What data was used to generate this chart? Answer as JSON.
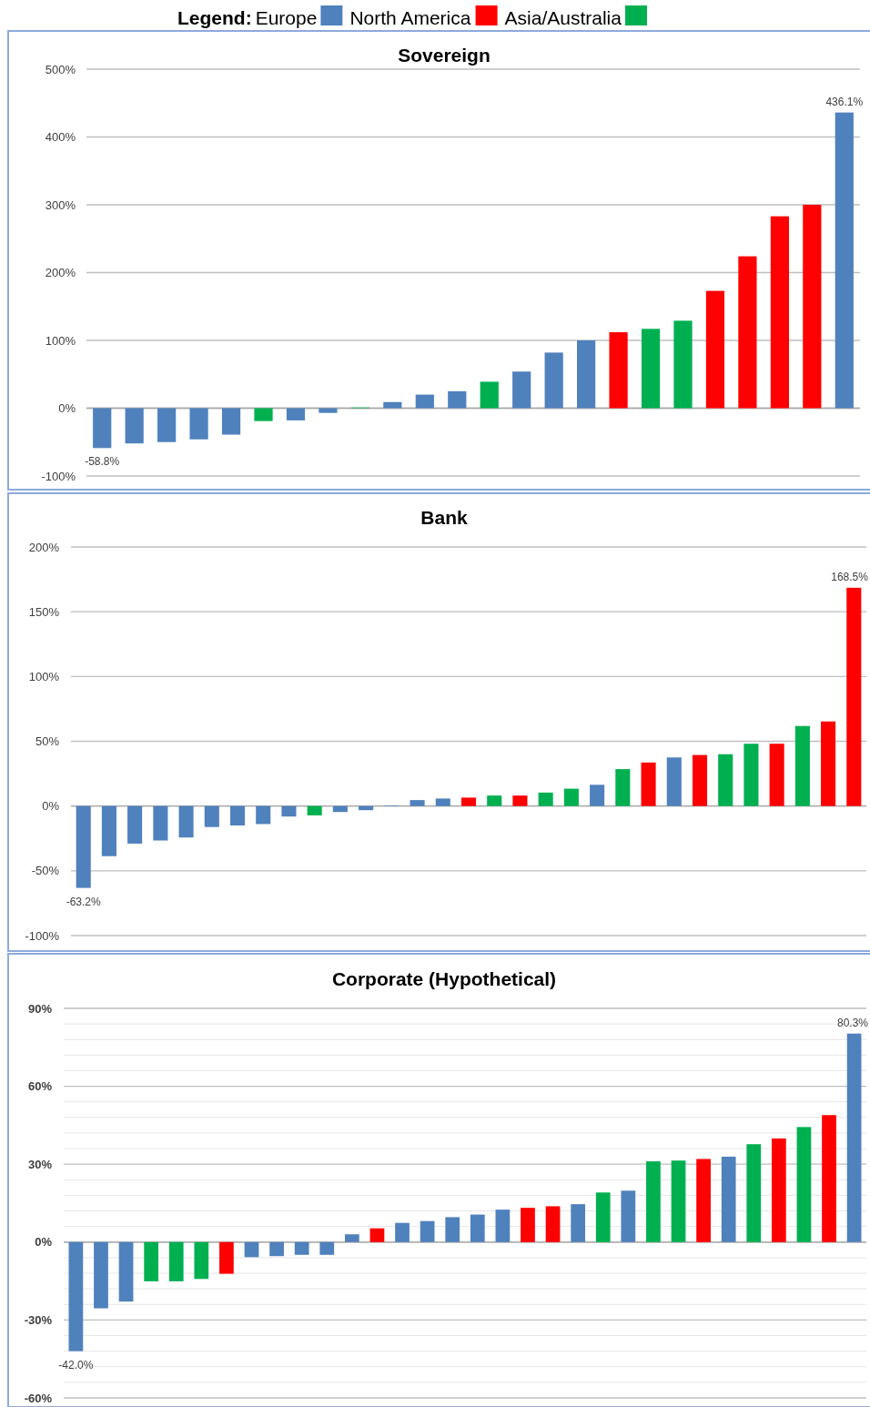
{
  "chart_data": [
    {
      "type": "bar",
      "title": "Sovereign",
      "grid": true,
      "legend": "top",
      "legend_title": "Legend:",
      "categories": [
        null,
        null,
        null,
        null,
        null,
        null,
        null,
        null,
        null,
        null,
        null,
        null,
        null,
        null,
        null,
        null,
        null,
        null,
        null,
        null,
        null,
        null,
        null,
        null
      ],
      "ylim": [
        -100,
        500
      ],
      "yticks": [
        {
          "value": -100,
          "label": "-100%"
        },
        {
          "value": 0,
          "label": "0%"
        },
        {
          "value": 100,
          "label": "100%"
        },
        {
          "value": 200,
          "label": "200%"
        },
        {
          "value": 300,
          "label": "300%"
        },
        {
          "value": 400,
          "label": "400%"
        },
        {
          "value": 500,
          "label": "500%"
        }
      ],
      "series": [
        {
          "name": "Europe",
          "color": "#4f81bd",
          "values": [
            -58.8,
            -52,
            -50,
            -46,
            -39,
            null,
            -18,
            -7,
            null,
            9,
            20,
            25,
            null,
            54,
            82,
            100,
            null,
            null,
            null,
            null,
            null,
            null,
            null,
            436.1
          ],
          "value_labels": [
            "-58.8%",
            null,
            null,
            null,
            null,
            null,
            null,
            null,
            null,
            null,
            null,
            null,
            null,
            null,
            null,
            null,
            null,
            null,
            null,
            null,
            null,
            null,
            null,
            "436.1%"
          ]
        },
        {
          "name": "North America",
          "color": "#ff0000",
          "values": [
            null,
            null,
            null,
            null,
            null,
            null,
            null,
            null,
            null,
            null,
            null,
            null,
            null,
            null,
            null,
            null,
            112,
            null,
            null,
            173,
            224,
            283,
            300,
            null
          ]
        },
        {
          "name": "Asia/Australia",
          "color": "#00b050",
          "values": [
            null,
            null,
            null,
            null,
            null,
            -19,
            null,
            null,
            1,
            null,
            null,
            null,
            39,
            null,
            null,
            null,
            null,
            117,
            129,
            null,
            null,
            null,
            null,
            null
          ]
        }
      ]
    },
    {
      "type": "bar",
      "title": "Bank",
      "grid": true,
      "categories": [
        null,
        null,
        null,
        null,
        null,
        null,
        null,
        null,
        null,
        null,
        null,
        null,
        null,
        null,
        null,
        null,
        null,
        null,
        null,
        null,
        null,
        null,
        null,
        null,
        null,
        null,
        null,
        null,
        null,
        null,
        null
      ],
      "ylim": [
        -100,
        200
      ],
      "yticks": [
        {
          "value": -100,
          "label": "-100%"
        },
        {
          "value": -50,
          "label": "-50%"
        },
        {
          "value": 0,
          "label": "0%"
        },
        {
          "value": 50,
          "label": "50%"
        },
        {
          "value": 100,
          "label": "100%"
        },
        {
          "value": 150,
          "label": "150%"
        },
        {
          "value": 200,
          "label": "200%"
        }
      ],
      "series": [
        {
          "color": "#4f81bd",
          "values": [
            -63.2,
            -38.7,
            -29,
            -26.6,
            -24.3,
            -16.2,
            -15,
            -13.9,
            -8.1,
            null,
            -4.6,
            -3.2,
            0.5,
            4.6,
            5.8,
            null,
            null,
            null,
            null,
            null,
            16.4,
            null,
            null,
            37.5,
            null,
            null,
            null,
            null,
            null,
            null,
            null
          ],
          "value_labels": [
            "-63.2%",
            null,
            null,
            null,
            null,
            null,
            null,
            null,
            null,
            null,
            null,
            null,
            null,
            null,
            null,
            null,
            null,
            null,
            null,
            null,
            null,
            null,
            null,
            null,
            null,
            null,
            null,
            null,
            null,
            null,
            null
          ]
        },
        {
          "color": "#ff0000",
          "values": [
            null,
            null,
            null,
            null,
            null,
            null,
            null,
            null,
            null,
            null,
            null,
            null,
            null,
            null,
            null,
            6.5,
            null,
            8.1,
            null,
            null,
            null,
            null,
            33.6,
            null,
            39.4,
            null,
            null,
            48.1,
            null,
            65.3,
            168.5
          ],
          "value_labels": [
            null,
            null,
            null,
            null,
            null,
            null,
            null,
            null,
            null,
            null,
            null,
            null,
            null,
            null,
            null,
            null,
            null,
            null,
            null,
            null,
            null,
            null,
            null,
            null,
            null,
            null,
            null,
            null,
            null,
            null,
            "168.5%"
          ]
        },
        {
          "color": "#00b050",
          "values": [
            null,
            null,
            null,
            null,
            null,
            null,
            null,
            null,
            null,
            -7.2,
            null,
            null,
            null,
            null,
            null,
            null,
            8.1,
            null,
            10.4,
            13.4,
            null,
            28.5,
            null,
            null,
            null,
            40,
            48.1,
            null,
            61.8,
            null,
            null
          ]
        }
      ]
    },
    {
      "type": "bar",
      "title": "Corporate (Hypothetical)",
      "grid": true,
      "categories": [
        null,
        null,
        null,
        null,
        null,
        null,
        null,
        null,
        null,
        null,
        null,
        null,
        null,
        null,
        null,
        null,
        null,
        null,
        null,
        null,
        null,
        null,
        null,
        null,
        null,
        null,
        null,
        null,
        null,
        null,
        null,
        null
      ],
      "ylim": [
        -60,
        90
      ],
      "yticks": [
        {
          "value": -60,
          "label": "-60%"
        },
        {
          "value": -54,
          "label": null
        },
        {
          "value": -48,
          "label": null
        },
        {
          "value": -42,
          "label": null
        },
        {
          "value": -36,
          "label": null
        },
        {
          "value": -30,
          "label": "-30%"
        },
        {
          "value": -24,
          "label": null
        },
        {
          "value": -18,
          "label": null
        },
        {
          "value": -12,
          "label": null
        },
        {
          "value": -6,
          "label": null
        },
        {
          "value": 0,
          "label": "0%"
        },
        {
          "value": 6,
          "label": null
        },
        {
          "value": 12,
          "label": null
        },
        {
          "value": 18,
          "label": null
        },
        {
          "value": 24,
          "label": null
        },
        {
          "value": 30,
          "label": "30%"
        },
        {
          "value": 36,
          "label": null
        },
        {
          "value": 42,
          "label": null
        },
        {
          "value": 48,
          "label": null
        },
        {
          "value": 54,
          "label": null
        },
        {
          "value": 60,
          "label": "60%"
        },
        {
          "value": 66,
          "label": null
        },
        {
          "value": 72,
          "label": null
        },
        {
          "value": 78,
          "label": null
        },
        {
          "value": 84,
          "label": null
        },
        {
          "value": 90,
          "label": "90%"
        }
      ],
      "series": [
        {
          "color": "#4f81bd",
          "values": [
            -42,
            -25.5,
            -22.9,
            null,
            null,
            null,
            null,
            -5.8,
            -5.4,
            -4.9,
            -4.9,
            3,
            null,
            7.4,
            8.1,
            9.6,
            10.6,
            12.5,
            null,
            null,
            14.6,
            null,
            19.8,
            null,
            null,
            null,
            32.9,
            null,
            null,
            null,
            null,
            80.3
          ],
          "value_labels": [
            "-42.0%",
            null,
            null,
            null,
            null,
            null,
            null,
            null,
            null,
            null,
            null,
            null,
            null,
            null,
            null,
            null,
            null,
            null,
            null,
            null,
            null,
            null,
            null,
            null,
            null,
            null,
            null,
            null,
            null,
            null,
            null,
            "80.3%"
          ]
        },
        {
          "color": "#ff0000",
          "values": [
            null,
            null,
            null,
            null,
            null,
            null,
            -12.2,
            null,
            null,
            null,
            null,
            null,
            5.3,
            null,
            null,
            null,
            null,
            null,
            13.2,
            13.8,
            null,
            null,
            null,
            null,
            null,
            32,
            null,
            null,
            39.9,
            null,
            48.9,
            null
          ]
        },
        {
          "color": "#00b050",
          "values": [
            null,
            null,
            null,
            -15.1,
            -15.1,
            -14.2,
            null,
            null,
            null,
            null,
            null,
            null,
            null,
            null,
            null,
            null,
            null,
            null,
            null,
            null,
            null,
            19.1,
            null,
            31.1,
            31.4,
            null,
            null,
            37.7,
            null,
            44.3,
            null,
            null
          ]
        }
      ]
    }
  ]
}
